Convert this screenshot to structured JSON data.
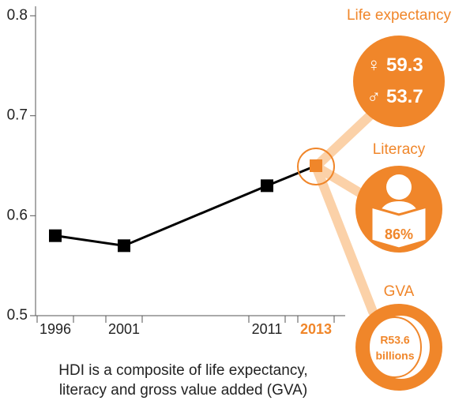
{
  "chart_data": {
    "type": "line",
    "categories": [
      "1996",
      "2001",
      "2011",
      "2013"
    ],
    "series": [
      {
        "color": "#000000",
        "highlight_color": "#f0862a",
        "values": [
          0.58,
          0.57,
          0.63,
          0.65
        ]
      }
    ],
    "ylim": [
      0.5,
      0.8
    ],
    "yticks": [
      0.5,
      0.6,
      0.7,
      0.8
    ],
    "annotation": [
      "HDI is a composite of life expectancy,",
      "literacy and gross value added (GVA)"
    ],
    "life_expectancy": {
      "label": "Life expectancy",
      "female_symbol": "♀",
      "female": 59.3,
      "male_symbol": "♂",
      "male": 53.7
    },
    "literacy": {
      "label": "Literacy",
      "value": 86,
      "value_label": "86%"
    },
    "gva": {
      "label": "GVA",
      "value_label": [
        "R53.6",
        "billions"
      ]
    }
  }
}
